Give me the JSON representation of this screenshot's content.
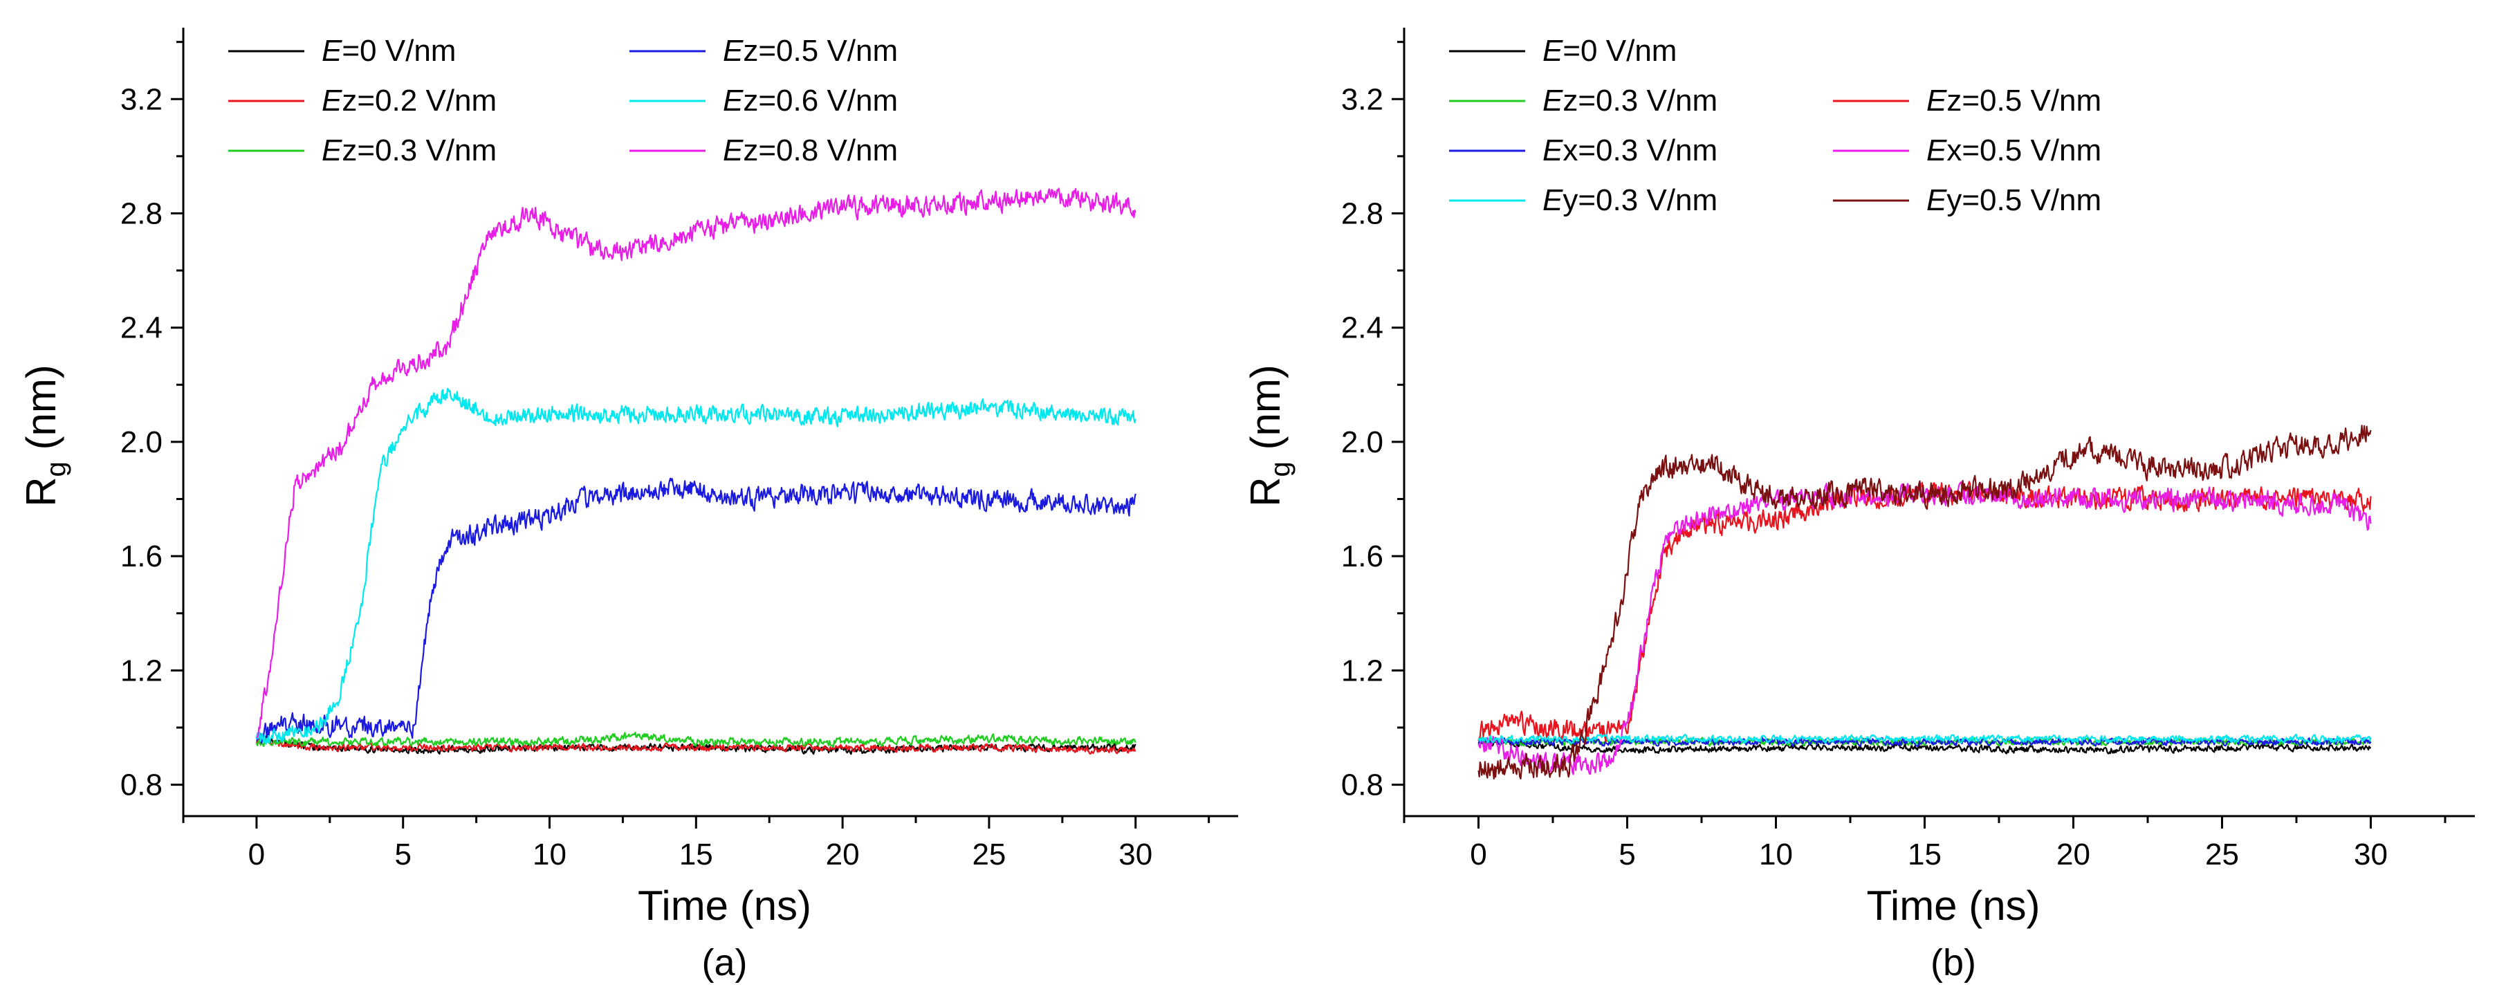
{
  "chart_data": [
    {
      "type": "line",
      "panel_label": "(a)",
      "xlabel": "Time (ns)",
      "ylabel_main": "R",
      "ylabel_sub": "g",
      "ylabel_unit": " (nm)",
      "xlim": [
        -2.5,
        33.5
      ],
      "ylim": [
        0.69,
        3.45
      ],
      "xticks": [
        "0",
        "5",
        "10",
        "15",
        "20",
        "25",
        "30"
      ],
      "yticks": [
        "0.8",
        "1.2",
        "1.6",
        "2.0",
        "2.4",
        "2.8",
        "3.2"
      ],
      "legend_columns": 2,
      "legend_placement": "top-left",
      "series": [
        {
          "name": "E=0 V/nm",
          "name_italic": "E",
          "name_rest": "=0 V/nm",
          "color": "#000000",
          "noise": 0.01,
          "seed": 11,
          "points": [
            [
              0,
              0.96
            ],
            [
              2,
              0.93
            ],
            [
              5,
              0.92
            ],
            [
              10,
              0.93
            ],
            [
              15,
              0.93
            ],
            [
              20,
              0.92
            ],
            [
              25,
              0.93
            ],
            [
              30,
              0.93
            ]
          ]
        },
        {
          "name": "Ez=0.2 V/nm",
          "name_italic": "E",
          "name_rest": "z=0.2 V/nm",
          "color": "#e8141e",
          "noise": 0.01,
          "seed": 12,
          "points": [
            [
              0,
              0.95
            ],
            [
              2,
              0.93
            ],
            [
              5,
              0.93
            ],
            [
              10,
              0.93
            ],
            [
              15,
              0.93
            ],
            [
              20,
              0.93
            ],
            [
              25,
              0.93
            ],
            [
              30,
              0.92
            ]
          ]
        },
        {
          "name": "Ez=0.3 V/nm",
          "name_italic": "E",
          "name_rest": "z=0.3 V/nm",
          "color": "#22cc22",
          "noise": 0.012,
          "seed": 13,
          "points": [
            [
              0,
              0.95
            ],
            [
              5,
              0.95
            ],
            [
              10,
              0.95
            ],
            [
              13,
              0.97
            ],
            [
              15,
              0.95
            ],
            [
              20,
              0.95
            ],
            [
              25,
              0.96
            ],
            [
              30,
              0.95
            ]
          ]
        },
        {
          "name": "Ez=0.5 V/nm",
          "name_italic": "E",
          "name_rest": "z=0.5 V/nm",
          "color": "#1a1ae0",
          "noise": 0.03,
          "seed": 14,
          "points": [
            [
              0,
              0.96
            ],
            [
              1,
              1.02
            ],
            [
              3,
              1.0
            ],
            [
              5.4,
              1.0
            ],
            [
              6.0,
              1.5
            ],
            [
              6.5,
              1.65
            ],
            [
              8,
              1.7
            ],
            [
              10,
              1.74
            ],
            [
              11,
              1.8
            ],
            [
              13,
              1.82
            ],
            [
              15,
              1.84
            ],
            [
              16,
              1.8
            ],
            [
              20,
              1.82
            ],
            [
              25,
              1.8
            ],
            [
              30,
              1.78
            ]
          ]
        },
        {
          "name": "Ez=0.6 V/nm",
          "name_italic": "E",
          "name_rest": "z=0.6 V/nm",
          "color": "#00e8ee",
          "noise": 0.025,
          "seed": 15,
          "points": [
            [
              0,
              0.96
            ],
            [
              2,
              0.99
            ],
            [
              2.8,
              1.1
            ],
            [
              3.6,
              1.45
            ],
            [
              4.2,
              1.9
            ],
            [
              5,
              2.05
            ],
            [
              6.5,
              2.18
            ],
            [
              8,
              2.08
            ],
            [
              10,
              2.1
            ],
            [
              15,
              2.1
            ],
            [
              20,
              2.09
            ],
            [
              25,
              2.12
            ],
            [
              30,
              2.08
            ]
          ]
        },
        {
          "name": "Ez=0.8 V/nm",
          "name_italic": "E",
          "name_rest": "z=0.8 V/nm",
          "color": "#e81ee8",
          "noise": 0.03,
          "seed": 16,
          "points": [
            [
              0,
              0.96
            ],
            [
              0.6,
              1.3
            ],
            [
              1.3,
              1.85
            ],
            [
              2,
              1.9
            ],
            [
              3,
              2.0
            ],
            [
              4,
              2.2
            ],
            [
              5,
              2.26
            ],
            [
              6.5,
              2.33
            ],
            [
              7.3,
              2.55
            ],
            [
              8,
              2.74
            ],
            [
              9.5,
              2.8
            ],
            [
              10.5,
              2.72
            ],
            [
              12,
              2.66
            ],
            [
              13,
              2.68
            ],
            [
              15,
              2.74
            ],
            [
              20,
              2.82
            ],
            [
              25,
              2.84
            ],
            [
              27,
              2.86
            ],
            [
              30,
              2.82
            ]
          ]
        }
      ]
    },
    {
      "type": "line",
      "panel_label": "(b)",
      "xlabel": "Time (ns)",
      "ylabel_main": "R",
      "ylabel_sub": "g",
      "ylabel_unit": " (nm)",
      "xlim": [
        -2.5,
        33.5
      ],
      "ylim": [
        0.69,
        3.45
      ],
      "xticks": [
        "0",
        "5",
        "10",
        "15",
        "20",
        "25",
        "30"
      ],
      "yticks": [
        "0.8",
        "1.2",
        "1.6",
        "2.0",
        "2.4",
        "2.8",
        "3.2"
      ],
      "legend_columns": 2,
      "legend_placement": "top-left",
      "series": [
        {
          "name": "E=0 V/nm",
          "name_italic": "E",
          "name_rest": "=0 V/nm",
          "color": "#000000",
          "noise": 0.01,
          "seed": 21,
          "legend_row": 0,
          "legend_col": 0,
          "points": [
            [
              0,
              0.95
            ],
            [
              3,
              0.93
            ],
            [
              5,
              0.92
            ],
            [
              10,
              0.93
            ],
            [
              15,
              0.93
            ],
            [
              20,
              0.92
            ],
            [
              25,
              0.93
            ],
            [
              30,
              0.93
            ]
          ]
        },
        {
          "name": "Ez=0.3 V/nm",
          "name_italic": "E",
          "name_rest": "z=0.3 V/nm",
          "color": "#22cc22",
          "noise": 0.01,
          "seed": 22,
          "legend_row": 1,
          "legend_col": 0,
          "points": [
            [
              0,
              0.95
            ],
            [
              5,
              0.95
            ],
            [
              10,
              0.95
            ],
            [
              15,
              0.95
            ],
            [
              20,
              0.95
            ],
            [
              25,
              0.95
            ],
            [
              30,
              0.95
            ]
          ]
        },
        {
          "name": "Ez=0.5 V/nm",
          "name_italic": "E",
          "name_rest": "z=0.5 V/nm",
          "color": "#e8141e",
          "noise": 0.03,
          "seed": 23,
          "legend_row": 1,
          "legend_col": 1,
          "points": [
            [
              0,
              0.98
            ],
            [
              1,
              1.02
            ],
            [
              3,
              0.99
            ],
            [
              5,
              0.99
            ],
            [
              5.6,
              1.3
            ],
            [
              6.2,
              1.6
            ],
            [
              7,
              1.7
            ],
            [
              9,
              1.72
            ],
            [
              10,
              1.72
            ],
            [
              12,
              1.8
            ],
            [
              15,
              1.82
            ],
            [
              20,
              1.8
            ],
            [
              25,
              1.8
            ],
            [
              30,
              1.8
            ]
          ]
        },
        {
          "name": "Ex=0.3 V/nm",
          "name_italic": "E",
          "name_rest": "x=0.3 V/nm",
          "color": "#1a1ae0",
          "noise": 0.01,
          "seed": 24,
          "legend_row": 2,
          "legend_col": 0,
          "points": [
            [
              0,
              0.95
            ],
            [
              5,
              0.95
            ],
            [
              10,
              0.95
            ],
            [
              15,
              0.95
            ],
            [
              20,
              0.95
            ],
            [
              25,
              0.95
            ],
            [
              30,
              0.95
            ]
          ]
        },
        {
          "name": "Ex=0.5 V/nm",
          "name_italic": "E",
          "name_rest": "x=0.5 V/nm",
          "color": "#e81ee8",
          "noise": 0.03,
          "seed": 25,
          "legend_row": 2,
          "legend_col": 1,
          "points": [
            [
              0,
              0.96
            ],
            [
              2,
              0.88
            ],
            [
              4.5,
              0.88
            ],
            [
              5.2,
              1.1
            ],
            [
              6,
              1.55
            ],
            [
              6.5,
              1.7
            ],
            [
              8,
              1.75
            ],
            [
              10,
              1.8
            ],
            [
              15,
              1.82
            ],
            [
              20,
              1.8
            ],
            [
              25,
              1.8
            ],
            [
              29,
              1.78
            ],
            [
              30,
              1.72
            ]
          ]
        },
        {
          "name": "Ey=0.3 V/nm",
          "name_italic": "E",
          "name_rest": "y=0.3 V/nm",
          "color": "#00e8ee",
          "noise": 0.01,
          "seed": 26,
          "legend_row": 3,
          "legend_col": 0,
          "points": [
            [
              0,
              0.96
            ],
            [
              5,
              0.96
            ],
            [
              10,
              0.96
            ],
            [
              15,
              0.96
            ],
            [
              20,
              0.96
            ],
            [
              25,
              0.96
            ],
            [
              30,
              0.96
            ]
          ]
        },
        {
          "name": "Ey=0.5 V/nm",
          "name_italic": "E",
          "name_rest": "y=0.5 V/nm",
          "color": "#7a1010",
          "noise": 0.035,
          "seed": 27,
          "legend_row": 3,
          "legend_col": 1,
          "points": [
            [
              0,
              0.86
            ],
            [
              3,
              0.86
            ],
            [
              3.5,
              0.95
            ],
            [
              4.2,
              1.2
            ],
            [
              4.8,
              1.45
            ],
            [
              5.5,
              1.82
            ],
            [
              6,
              1.9
            ],
            [
              8,
              1.92
            ],
            [
              9,
              1.85
            ],
            [
              10,
              1.8
            ],
            [
              13,
              1.83
            ],
            [
              16,
              1.82
            ],
            [
              18,
              1.84
            ],
            [
              20.5,
              1.98
            ],
            [
              22,
              1.92
            ],
            [
              25,
              1.9
            ],
            [
              27,
              1.98
            ],
            [
              29,
              2.0
            ],
            [
              30,
              2.04
            ]
          ]
        }
      ]
    }
  ]
}
